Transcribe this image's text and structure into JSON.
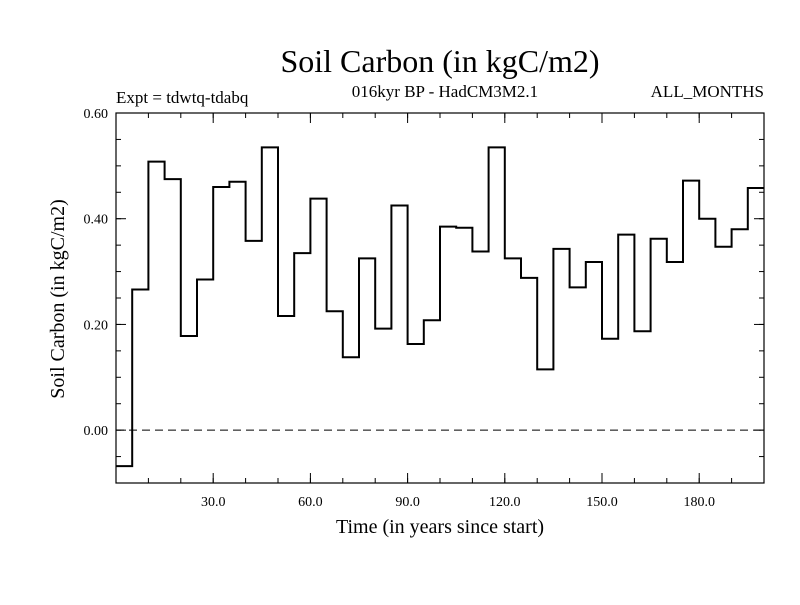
{
  "chart_data": {
    "type": "line",
    "step": true,
    "title": "Soil Carbon (in kgC/m2)",
    "subtitle": "016kyr BP - HadCM3M2.1",
    "left_note": "Expt = tdwtq-tdabq",
    "right_note": "ALL_MONTHS",
    "xlabel": "Time (in years since start)",
    "ylabel": "Soil Carbon (in kgC/m2)",
    "xlim": [
      0,
      200
    ],
    "ylim": [
      -0.1,
      0.6
    ],
    "xticks": [
      30,
      60,
      90,
      120,
      150,
      180
    ],
    "xtick_labels": [
      "30.0",
      "60.0",
      "90.0",
      "120.0",
      "150.0",
      "180.0"
    ],
    "yticks": [
      0.0,
      0.2,
      0.4,
      0.6
    ],
    "ytick_labels": [
      "0.00",
      "0.20",
      "0.40",
      "0.60"
    ],
    "zero_line": 0.0,
    "series": [
      {
        "name": "Soil Carbon",
        "edges": [
          0,
          5,
          10,
          15,
          20,
          25,
          30,
          35,
          40,
          45,
          50,
          55,
          60,
          65,
          70,
          75,
          80,
          85,
          90,
          95,
          100,
          105,
          110,
          115,
          120,
          125,
          130,
          135,
          140,
          145,
          150,
          155,
          160,
          165,
          170,
          175,
          180,
          185,
          190,
          195,
          200
        ],
        "values": [
          -0.068,
          0.266,
          0.508,
          0.475,
          0.178,
          0.285,
          0.46,
          0.47,
          0.358,
          0.535,
          0.216,
          0.335,
          0.438,
          0.225,
          0.138,
          0.325,
          0.192,
          0.425,
          0.163,
          0.208,
          0.385,
          0.383,
          0.338,
          0.535,
          0.325,
          0.288,
          0.115,
          0.343,
          0.27,
          0.318,
          0.173,
          0.37,
          0.187,
          0.362,
          0.318,
          0.472,
          0.4,
          0.347,
          0.38,
          0.458
        ]
      }
    ]
  }
}
